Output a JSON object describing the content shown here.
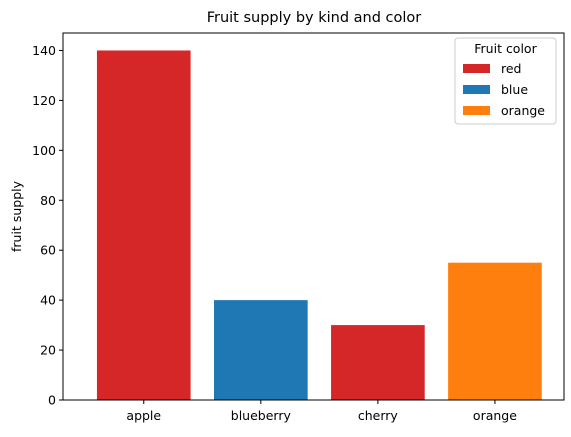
{
  "chart_data": {
    "type": "bar",
    "title": "Fruit supply by kind and color",
    "xlabel": "",
    "ylabel": "fruit supply",
    "categories": [
      "apple",
      "blueberry",
      "cherry",
      "orange"
    ],
    "values": [
      140,
      40,
      30,
      55
    ],
    "bar_colors": [
      "#d62728",
      "#1f77b4",
      "#d62728",
      "#ff7f0e"
    ],
    "ylim": [
      0,
      147
    ],
    "yticks": [
      0,
      20,
      40,
      60,
      80,
      100,
      120,
      140
    ],
    "grid": false,
    "legend": {
      "title": "Fruit color",
      "placement": "upper-right",
      "entries": [
        {
          "label": "red",
          "color": "#d62728"
        },
        {
          "label": "blue",
          "color": "#1f77b4"
        },
        {
          "label": "orange",
          "color": "#ff7f0e"
        }
      ]
    }
  }
}
